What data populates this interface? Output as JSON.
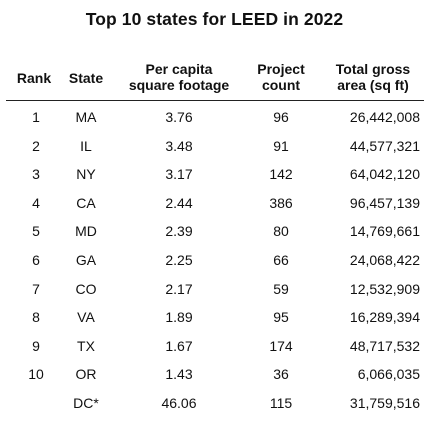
{
  "title": "Top 10 states for LEED in 2022",
  "columns": [
    {
      "label": "Rank",
      "line2": ""
    },
    {
      "label": "State",
      "line2": ""
    },
    {
      "label": "Per capita",
      "line2": "square footage"
    },
    {
      "label": "Project",
      "line2": "count"
    },
    {
      "label": "Total gross",
      "line2": "area (sq ft)"
    }
  ],
  "rows": [
    {
      "rank": "1",
      "state": "MA",
      "per_capita": "3.76",
      "projects": "96",
      "gross_area": "26,442,008"
    },
    {
      "rank": "2",
      "state": "IL",
      "per_capita": "3.48",
      "projects": "91",
      "gross_area": "44,577,321"
    },
    {
      "rank": "3",
      "state": "NY",
      "per_capita": "3.17",
      "projects": "142",
      "gross_area": "64,042,120"
    },
    {
      "rank": "4",
      "state": "CA",
      "per_capita": "2.44",
      "projects": "386",
      "gross_area": "96,457,139"
    },
    {
      "rank": "5",
      "state": "MD",
      "per_capita": "2.39",
      "projects": "80",
      "gross_area": "14,769,661"
    },
    {
      "rank": "6",
      "state": "GA",
      "per_capita": "2.25",
      "projects": "66",
      "gross_area": "24,068,422"
    },
    {
      "rank": "7",
      "state": "CO",
      "per_capita": "2.17",
      "projects": "59",
      "gross_area": "12,532,909"
    },
    {
      "rank": "8",
      "state": "VA",
      "per_capita": "1.89",
      "projects": "95",
      "gross_area": "16,289,394"
    },
    {
      "rank": "9",
      "state": "TX",
      "per_capita": "1.67",
      "projects": "174",
      "gross_area": "48,717,532"
    },
    {
      "rank": "10",
      "state": "OR",
      "per_capita": "1.43",
      "projects": "36",
      "gross_area": "6,066,035"
    },
    {
      "rank": "",
      "state": "DC*",
      "per_capita": "46.06",
      "projects": "115",
      "gross_area": "31,759,516"
    }
  ]
}
